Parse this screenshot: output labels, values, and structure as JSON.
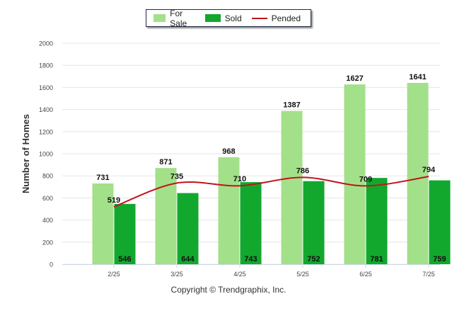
{
  "chart_data": {
    "type": "bar",
    "categories": [
      "2/25",
      "3/25",
      "4/25",
      "5/25",
      "6/25",
      "7/25"
    ],
    "series": [
      {
        "name": "For Sale",
        "type": "bar",
        "color": "#a3e08a",
        "values": [
          731,
          871,
          968,
          1387,
          1627,
          1641
        ]
      },
      {
        "name": "Sold",
        "type": "bar",
        "color": "#12a82e",
        "values": [
          546,
          644,
          743,
          752,
          781,
          759
        ]
      },
      {
        "name": "Pended",
        "type": "line",
        "color": "#c0151d",
        "values": [
          519,
          735,
          710,
          786,
          709,
          794
        ]
      }
    ],
    "ylabel": "Number of Homes",
    "xlabel": "",
    "ylim": [
      0,
      2000
    ],
    "yticks": [
      0,
      200,
      400,
      600,
      800,
      1000,
      1200,
      1400,
      1600,
      1800,
      2000
    ],
    "grid": true,
    "legend_position": "top-center"
  },
  "footer": {
    "copyright": "Copyright © Trendgraphix, Inc."
  }
}
